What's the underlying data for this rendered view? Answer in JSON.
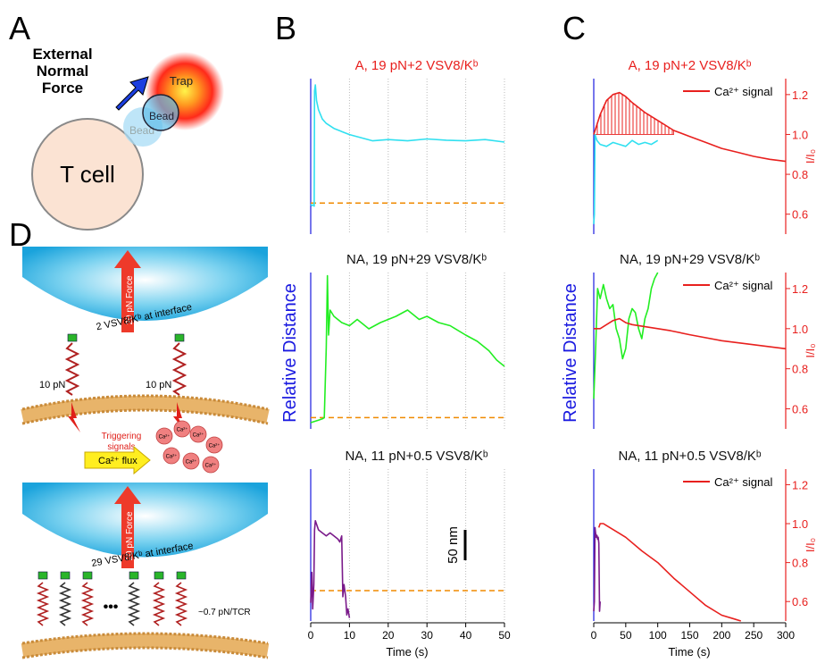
{
  "panel_labels": {
    "a": "A",
    "b": "B",
    "c": "C",
    "d": "D"
  },
  "panel_a": {
    "force_label": [
      "External",
      "Normal",
      "Force"
    ],
    "trap": "Trap",
    "bead": "Bead",
    "bead_ghost": "Bead",
    "cell": "T cell"
  },
  "panel_b": {
    "type": "line",
    "y_label": "Relative Distance",
    "x_label": "Time (s)",
    "xlim": [
      0,
      50
    ],
    "xticks": [
      0,
      10,
      20,
      30,
      40,
      50
    ],
    "grid": true,
    "threshold_color": "#f08a00",
    "scale_bar": {
      "label": "50 nm",
      "value": 50
    },
    "plots": [
      {
        "title": "A, 19 pN+2 VSV8/Kᵇ",
        "title_color": "#e8201e",
        "ylim": [
          0,
          250
        ],
        "threshold": 50,
        "series": [
          {
            "color": "#30e0f0",
            "x": [
              0,
              0.3,
              0.6,
              0.9,
              1.0,
              1.2,
              1.5,
              2,
              3,
              4,
              6,
              8,
              10,
              13,
              16,
              20,
              25,
              30,
              35,
              40,
              45,
              50
            ],
            "values": [
              48,
              46,
              47,
              45,
              230,
              240,
              215,
              200,
              185,
              178,
              170,
              165,
              160,
              155,
              150,
              152,
              150,
              153,
              151,
              150,
              152,
              148
            ]
          }
        ]
      },
      {
        "title": "NA, 19 pN+29 VSV8/Kᵇ",
        "title_color": "#111111",
        "ylim": [
          0,
          250
        ],
        "threshold": 18,
        "series": [
          {
            "color": "#22ee22",
            "x": [
              0,
              1,
              2,
              3,
              3.5,
              4,
              4.3,
              4.6,
              5,
              6,
              8,
              10,
              12,
              15,
              18,
              20,
              22,
              25,
              28,
              30,
              33,
              36,
              40,
              43,
              46,
              48,
              50
            ],
            "values": [
              10,
              12,
              14,
              16,
              18,
              130,
              245,
              150,
              190,
              180,
              170,
              165,
              175,
              160,
              170,
              175,
              180,
              190,
              175,
              180,
              170,
              165,
              150,
              140,
              125,
              110,
              100
            ]
          }
        ]
      },
      {
        "title": "NA, 11 pN+0.5 VSV8/Kᵇ",
        "title_color": "#111111",
        "ylim": [
          0,
          250
        ],
        "threshold": 50,
        "series": [
          {
            "color": "#7a1a8a",
            "x": [
              0,
              0.3,
              0.5,
              0.8,
              1,
              1.2,
              2,
              3,
              4,
              5,
              6,
              7,
              7.5,
              8,
              8.3,
              8.6,
              9,
              9.3,
              9.6,
              10
            ],
            "values": [
              30,
              80,
              20,
              60,
              150,
              165,
              150,
              145,
              140,
              145,
              140,
              135,
              130,
              140,
              40,
              60,
              40,
              10,
              20,
              5
            ]
          }
        ]
      }
    ]
  },
  "panel_c": {
    "type": "line",
    "y_label": "Relative Distance",
    "y2_label": "I/I₀",
    "x_label": "Time (s)",
    "xlim": [
      0,
      300
    ],
    "xticks": [
      0,
      50,
      100,
      150,
      200,
      250,
      300
    ],
    "y2lim": [
      0.5,
      1.28
    ],
    "y2ticks": [
      0.6,
      0.8,
      {
        "value": 1,
        "label": "1.0"
      },
      1.2
    ],
    "hatch_base": 1,
    "plots": [
      {
        "title": "A, 19 pN+2 VSV8/Kᵇ",
        "title_color": "#e8201e",
        "hatch": true,
        "series": [
          {
            "name": "Ca²⁺ signal",
            "color": "#e8201e",
            "axis": "y2",
            "x": [
              0,
              10,
              20,
              30,
              40,
              50,
              60,
              80,
              100,
              125,
              150,
              175,
              200,
              225,
              250,
              275,
              300
            ],
            "values": [
              1.0,
              1.1,
              1.17,
              1.2,
              1.21,
              1.19,
              1.16,
              1.11,
              1.07,
              1.02,
              0.99,
              0.96,
              0.93,
              0.91,
              0.89,
              0.875,
              0.865
            ]
          },
          {
            "color": "#30e0f0",
            "axis": "y2",
            "x": [
              0,
              1,
              2,
              5,
              10,
              20,
              30,
              40,
              50,
              60,
              70,
              80,
              90,
              100
            ],
            "values": [
              0.55,
              0.6,
              1.0,
              0.97,
              0.95,
              0.94,
              0.96,
              0.95,
              0.94,
              0.97,
              0.95,
              0.96,
              0.95,
              0.97
            ]
          }
        ]
      },
      {
        "title": "NA, 19 pN+29 VSV8/Kᵇ",
        "title_color": "#111111",
        "hatch": false,
        "series": [
          {
            "name": "Ca²⁺ signal",
            "color": "#e8201e",
            "axis": "y2",
            "x": [
              0,
              10,
              20,
              30,
              40,
              50,
              60,
              80,
              100,
              120,
              150,
              200,
              250,
              300
            ],
            "values": [
              1.0,
              1.0,
              1.02,
              1.04,
              1.05,
              1.03,
              1.02,
              1.01,
              1.0,
              0.99,
              0.97,
              0.94,
              0.92,
              0.9
            ]
          },
          {
            "color": "#22ee22",
            "axis": "y2",
            "x": [
              0,
              3,
              6,
              10,
              15,
              20,
              25,
              30,
              35,
              40,
              45,
              50,
              55,
              60,
              65,
              70,
              75,
              80,
              85,
              90,
              95,
              100
            ],
            "values": [
              0.65,
              0.9,
              1.2,
              1.15,
              1.22,
              1.15,
              1.1,
              1.12,
              1.0,
              0.95,
              0.85,
              0.9,
              1.05,
              1.1,
              1.08,
              1.0,
              0.95,
              1.05,
              1.1,
              1.2,
              1.25,
              1.28
            ]
          }
        ]
      },
      {
        "title": "NA, 11 pN+0.5 VSV8/Kᵇ",
        "title_color": "#111111",
        "hatch": false,
        "series": [
          {
            "name": "Ca²⁺ signal",
            "color": "#e8201e",
            "axis": "y2",
            "x": [
              8,
              10,
              15,
              20,
              30,
              40,
              50,
              75,
              100,
              125,
              150,
              175,
              200,
              220,
              230
            ],
            "values": [
              0.98,
              1.0,
              1.0,
              0.99,
              0.97,
              0.95,
              0.93,
              0.86,
              0.8,
              0.72,
              0.65,
              0.58,
              0.53,
              0.51,
              0.5
            ]
          },
          {
            "color": "#7a1a8a",
            "axis": "y2",
            "x": [
              0,
              1,
              2,
              3,
              4,
              5,
              6,
              7,
              8,
              9,
              10
            ],
            "values": [
              0.55,
              0.6,
              0.98,
              0.95,
              0.93,
              0.94,
              0.92,
              0.93,
              0.9,
              0.55,
              0.6
            ]
          }
        ]
      }
    ]
  },
  "panel_d": {
    "top": {
      "force": "20 pN Force",
      "interface": "2 VSV8/Kᵇ at interface",
      "spring_left": "10 pN",
      "spring_right": "10 pN",
      "triggering": [
        "Triggering",
        "signals"
      ],
      "flux": "Ca²⁺ flux",
      "ions": [
        "Ca²⁺",
        "Ca²⁺",
        "Ca²⁺",
        "Ca²⁺",
        "Ca²⁺",
        "Ca²⁺",
        "Ca²⁺"
      ]
    },
    "bottom": {
      "force": "20 pN Force",
      "interface": "29 VSV8/Kᵇ at interface",
      "ellipsis": "•••",
      "per_tcr": "~0.7 pN/TCR"
    }
  }
}
